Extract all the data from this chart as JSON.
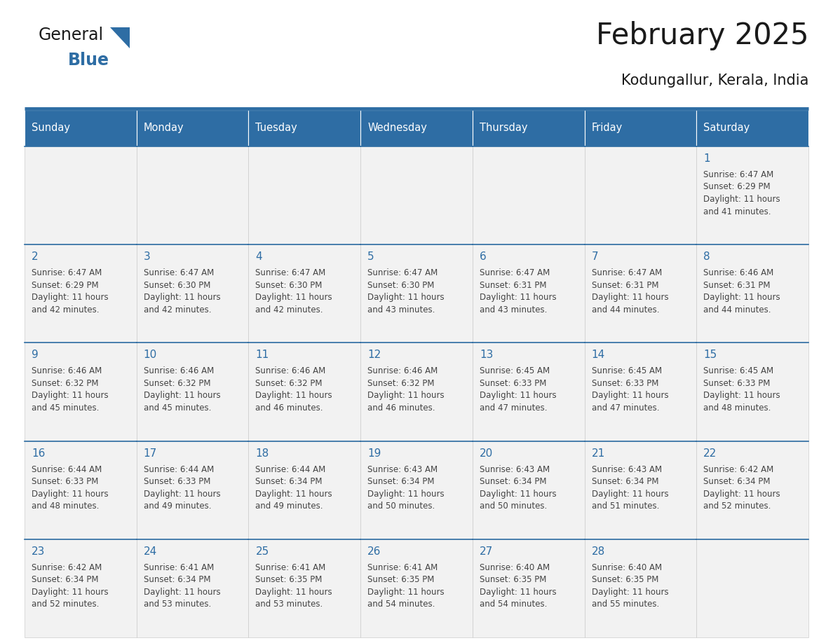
{
  "title": "February 2025",
  "subtitle": "Kodungallur, Kerala, India",
  "days_of_week": [
    "Sunday",
    "Monday",
    "Tuesday",
    "Wednesday",
    "Thursday",
    "Friday",
    "Saturday"
  ],
  "header_bg": "#2E6DA4",
  "header_text": "#FFFFFF",
  "cell_bg": "#F2F2F2",
  "cell_border": "#AAAAAA",
  "cell_border_top": "#2E6DA4",
  "title_color": "#1a1a1a",
  "subtitle_color": "#1a1a1a",
  "day_num_color": "#2E6DA4",
  "info_color": "#444444",
  "logo_general_color": "#1a1a1a",
  "logo_blue_color": "#2E6DA4",
  "calendar": [
    [
      null,
      null,
      null,
      null,
      null,
      null,
      {
        "day": 1,
        "sunrise": "6:47 AM",
        "sunset": "6:29 PM",
        "daylight": "11 hours",
        "daylight2": "and 41 minutes."
      }
    ],
    [
      {
        "day": 2,
        "sunrise": "6:47 AM",
        "sunset": "6:29 PM",
        "daylight": "11 hours",
        "daylight2": "and 42 minutes."
      },
      {
        "day": 3,
        "sunrise": "6:47 AM",
        "sunset": "6:30 PM",
        "daylight": "11 hours",
        "daylight2": "and 42 minutes."
      },
      {
        "day": 4,
        "sunrise": "6:47 AM",
        "sunset": "6:30 PM",
        "daylight": "11 hours",
        "daylight2": "and 42 minutes."
      },
      {
        "day": 5,
        "sunrise": "6:47 AM",
        "sunset": "6:30 PM",
        "daylight": "11 hours",
        "daylight2": "and 43 minutes."
      },
      {
        "day": 6,
        "sunrise": "6:47 AM",
        "sunset": "6:31 PM",
        "daylight": "11 hours",
        "daylight2": "and 43 minutes."
      },
      {
        "day": 7,
        "sunrise": "6:47 AM",
        "sunset": "6:31 PM",
        "daylight": "11 hours",
        "daylight2": "and 44 minutes."
      },
      {
        "day": 8,
        "sunrise": "6:46 AM",
        "sunset": "6:31 PM",
        "daylight": "11 hours",
        "daylight2": "and 44 minutes."
      }
    ],
    [
      {
        "day": 9,
        "sunrise": "6:46 AM",
        "sunset": "6:32 PM",
        "daylight": "11 hours",
        "daylight2": "and 45 minutes."
      },
      {
        "day": 10,
        "sunrise": "6:46 AM",
        "sunset": "6:32 PM",
        "daylight": "11 hours",
        "daylight2": "and 45 minutes."
      },
      {
        "day": 11,
        "sunrise": "6:46 AM",
        "sunset": "6:32 PM",
        "daylight": "11 hours",
        "daylight2": "and 46 minutes."
      },
      {
        "day": 12,
        "sunrise": "6:46 AM",
        "sunset": "6:32 PM",
        "daylight": "11 hours",
        "daylight2": "and 46 minutes."
      },
      {
        "day": 13,
        "sunrise": "6:45 AM",
        "sunset": "6:33 PM",
        "daylight": "11 hours",
        "daylight2": "and 47 minutes."
      },
      {
        "day": 14,
        "sunrise": "6:45 AM",
        "sunset": "6:33 PM",
        "daylight": "11 hours",
        "daylight2": "and 47 minutes."
      },
      {
        "day": 15,
        "sunrise": "6:45 AM",
        "sunset": "6:33 PM",
        "daylight": "11 hours",
        "daylight2": "and 48 minutes."
      }
    ],
    [
      {
        "day": 16,
        "sunrise": "6:44 AM",
        "sunset": "6:33 PM",
        "daylight": "11 hours",
        "daylight2": "and 48 minutes."
      },
      {
        "day": 17,
        "sunrise": "6:44 AM",
        "sunset": "6:33 PM",
        "daylight": "11 hours",
        "daylight2": "and 49 minutes."
      },
      {
        "day": 18,
        "sunrise": "6:44 AM",
        "sunset": "6:34 PM",
        "daylight": "11 hours",
        "daylight2": "and 49 minutes."
      },
      {
        "day": 19,
        "sunrise": "6:43 AM",
        "sunset": "6:34 PM",
        "daylight": "11 hours",
        "daylight2": "and 50 minutes."
      },
      {
        "day": 20,
        "sunrise": "6:43 AM",
        "sunset": "6:34 PM",
        "daylight": "11 hours",
        "daylight2": "and 50 minutes."
      },
      {
        "day": 21,
        "sunrise": "6:43 AM",
        "sunset": "6:34 PM",
        "daylight": "11 hours",
        "daylight2": "and 51 minutes."
      },
      {
        "day": 22,
        "sunrise": "6:42 AM",
        "sunset": "6:34 PM",
        "daylight": "11 hours",
        "daylight2": "and 52 minutes."
      }
    ],
    [
      {
        "day": 23,
        "sunrise": "6:42 AM",
        "sunset": "6:34 PM",
        "daylight": "11 hours",
        "daylight2": "and 52 minutes."
      },
      {
        "day": 24,
        "sunrise": "6:41 AM",
        "sunset": "6:34 PM",
        "daylight": "11 hours",
        "daylight2": "and 53 minutes."
      },
      {
        "day": 25,
        "sunrise": "6:41 AM",
        "sunset": "6:35 PM",
        "daylight": "11 hours",
        "daylight2": "and 53 minutes."
      },
      {
        "day": 26,
        "sunrise": "6:41 AM",
        "sunset": "6:35 PM",
        "daylight": "11 hours",
        "daylight2": "and 54 minutes."
      },
      {
        "day": 27,
        "sunrise": "6:40 AM",
        "sunset": "6:35 PM",
        "daylight": "11 hours",
        "daylight2": "and 54 minutes."
      },
      {
        "day": 28,
        "sunrise": "6:40 AM",
        "sunset": "6:35 PM",
        "daylight": "11 hours",
        "daylight2": "and 55 minutes."
      },
      null
    ]
  ]
}
